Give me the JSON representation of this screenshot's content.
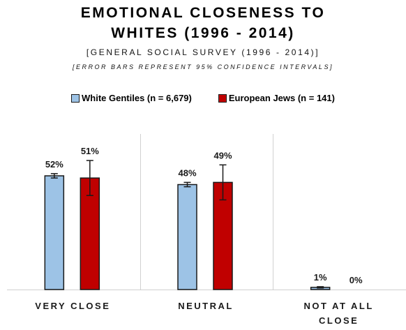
{
  "chart_data": {
    "type": "bar",
    "title_lines": [
      "EMOTIONAL CLOSENESS TO",
      "WHITES (1996 - 2014)"
    ],
    "subtitle": "[GENERAL SOCIAL SURVEY (1996 - 2014)]",
    "note": "[ERROR BARS REPRESENT 95% CONFIDENCE INTERVALS]",
    "categories": [
      [
        "VERY CLOSE"
      ],
      [
        "NEUTRAL"
      ],
      [
        "NOT AT ALL",
        "CLOSE"
      ]
    ],
    "series": [
      {
        "name": "White Gentiles (n = 6,679)",
        "color": "#9dc3e6",
        "values": [
          52,
          48,
          1
        ],
        "labels": [
          "52%",
          "48%",
          "1%"
        ],
        "error_low": [
          51,
          47,
          0.7
        ],
        "error_high": [
          53,
          49,
          1.3
        ]
      },
      {
        "name": "European Jews (n = 141)",
        "color": "#c00000",
        "values": [
          51,
          49,
          0
        ],
        "labels": [
          "51%",
          "49%",
          "0%"
        ],
        "error_low": [
          43,
          41,
          0
        ],
        "error_high": [
          59,
          57,
          0
        ]
      }
    ],
    "ylim": [
      0,
      60
    ],
    "grid": false,
    "legend_position": "top"
  }
}
